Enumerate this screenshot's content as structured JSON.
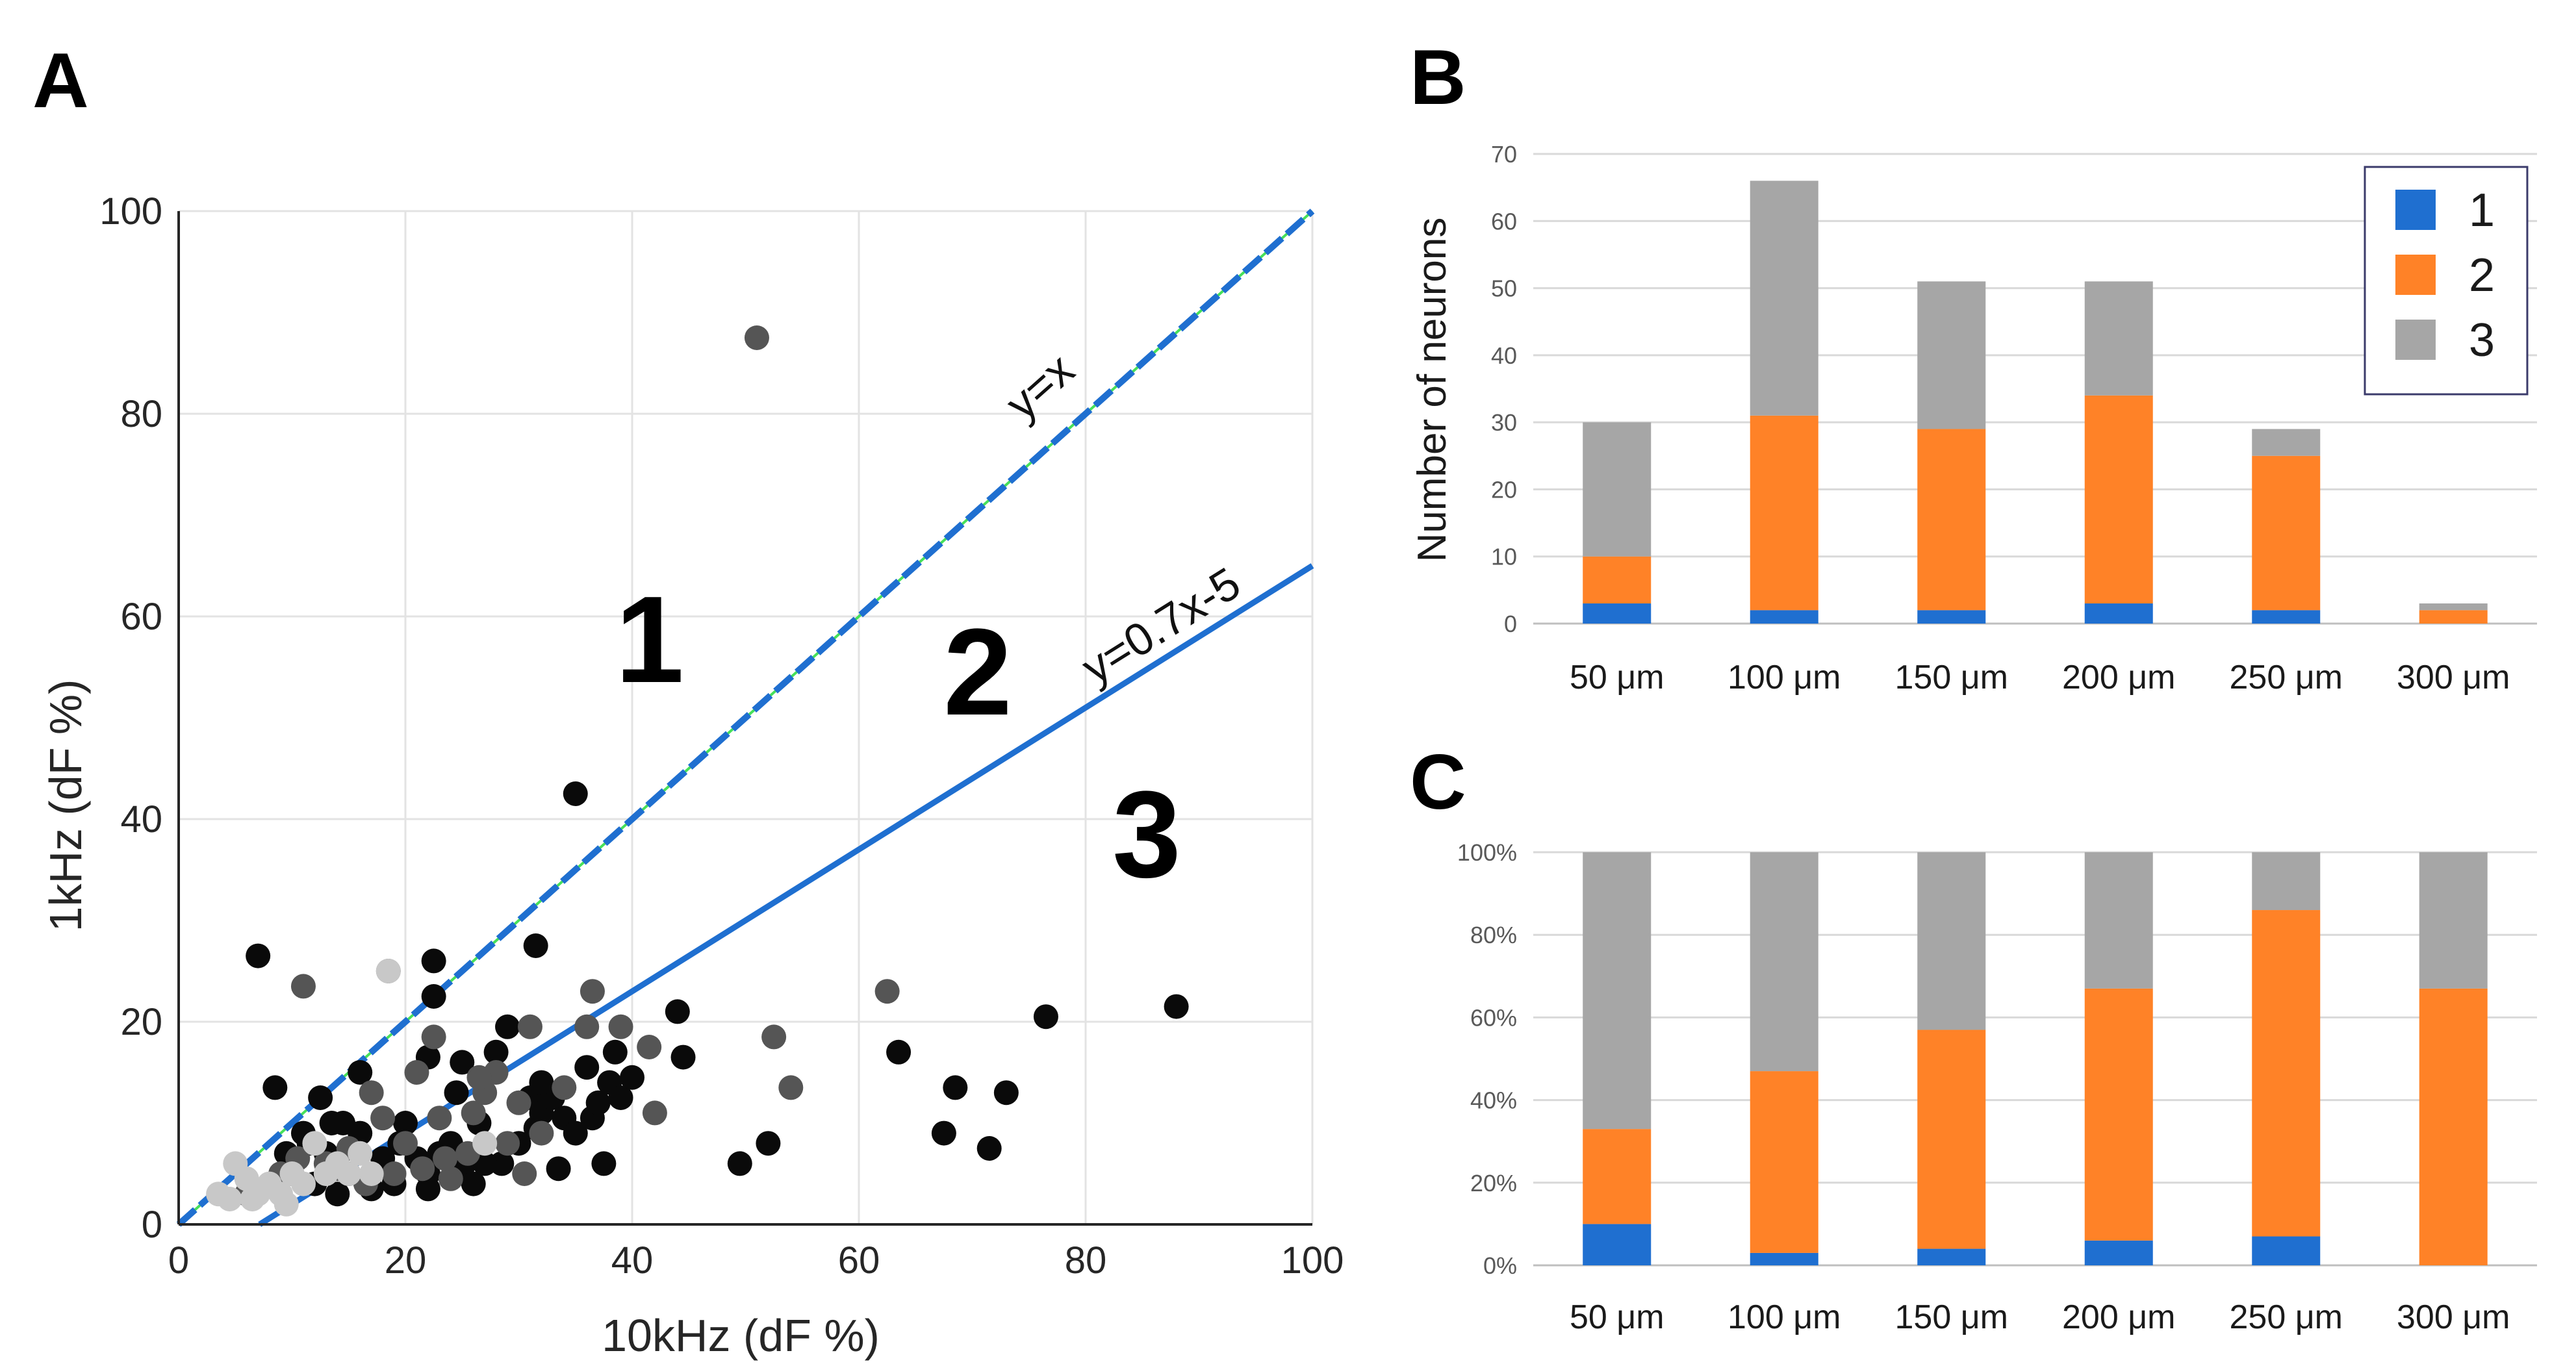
{
  "chart_data": [
    {
      "panel": "A",
      "type": "scatter",
      "xlabel": "10kHz (dF %)",
      "ylabel": "1kHz (dF %)",
      "xlim": [
        0,
        100
      ],
      "ylim": [
        0,
        100
      ],
      "x_ticks": [
        "0",
        "20",
        "40",
        "60",
        "80",
        "100"
      ],
      "y_ticks": [
        "0",
        "20",
        "40",
        "60",
        "80",
        "100"
      ],
      "grid": true,
      "lines": [
        {
          "name": "y=x",
          "slope": 1,
          "intercept": 0,
          "color": "#1f6fd0",
          "style": "dashed"
        },
        {
          "name": "y=0.7x-5",
          "slope": 0.7,
          "intercept": -5,
          "color": "#1f6fd0",
          "style": "solid"
        }
      ],
      "regions": [
        "1",
        "2",
        "3"
      ],
      "series": [
        {
          "name": "black",
          "color": "#0a0a0a",
          "points": [
            [
              7,
              26.5
            ],
            [
              22.5,
              26
            ],
            [
              22.5,
              22.5
            ],
            [
              31.5,
              27.5
            ],
            [
              35,
              42.5
            ],
            [
              8.5,
              13.5
            ],
            [
              12.5,
              12.5
            ],
            [
              13.5,
              10
            ],
            [
              16,
              15
            ],
            [
              11,
              9
            ],
            [
              9.5,
              7
            ],
            [
              13,
              7
            ],
            [
              15,
              5
            ],
            [
              16,
              9
            ],
            [
              18,
              6.5
            ],
            [
              19,
              4
            ],
            [
              20,
              10
            ],
            [
              21,
              6.5
            ],
            [
              22,
              5
            ],
            [
              23,
              7
            ],
            [
              24,
              8
            ],
            [
              25,
              5.5
            ],
            [
              26,
              4
            ],
            [
              26.5,
              10
            ],
            [
              28,
              17
            ],
            [
              28.5,
              6
            ],
            [
              30,
              8
            ],
            [
              31,
              12.5
            ],
            [
              31.5,
              9.5
            ],
            [
              32,
              11
            ],
            [
              33,
              12.5
            ],
            [
              33.5,
              5.5
            ],
            [
              34,
              10.5
            ],
            [
              35,
              9
            ],
            [
              36,
              15.5
            ],
            [
              36.5,
              10.5
            ],
            [
              37,
              12
            ],
            [
              37.5,
              6
            ],
            [
              38,
              14
            ],
            [
              38.5,
              17
            ],
            [
              39,
              12.5
            ],
            [
              40,
              14.5
            ],
            [
              44,
              21
            ],
            [
              44.5,
              16.5
            ],
            [
              49.5,
              6
            ],
            [
              52,
              8
            ],
            [
              63.5,
              17
            ],
            [
              67.5,
              9
            ],
            [
              68.5,
              13.5
            ],
            [
              71.5,
              7.5
            ],
            [
              73,
              13
            ],
            [
              76.5,
              20.5
            ],
            [
              88,
              21.5
            ],
            [
              10,
              5
            ],
            [
              12,
              4
            ],
            [
              14,
              3
            ],
            [
              17,
              3.5
            ],
            [
              19.5,
              8
            ],
            [
              22,
              16.5
            ],
            [
              27,
              6
            ],
            [
              29,
              19.5
            ],
            [
              24.5,
              13
            ],
            [
              25,
              16
            ],
            [
              14.5,
              10
            ],
            [
              11.5,
              8
            ],
            [
              22,
              3.5
            ],
            [
              32,
              14
            ]
          ]
        },
        {
          "name": "dark-gray",
          "color": "#555555",
          "points": [
            [
              51,
              87.5
            ],
            [
              11,
              23.5
            ],
            [
              18.5,
              25
            ],
            [
              62.5,
              23
            ],
            [
              52.5,
              18.5
            ],
            [
              54,
              13.5
            ],
            [
              36.5,
              23
            ],
            [
              36,
              19.5
            ],
            [
              39,
              19.5
            ],
            [
              41.5,
              17.5
            ],
            [
              42,
              11
            ],
            [
              31,
              19.5
            ],
            [
              22.5,
              18.5
            ],
            [
              21,
              15
            ],
            [
              17,
              13
            ],
            [
              18,
              10.5
            ],
            [
              20,
              8
            ],
            [
              23,
              10.5
            ],
            [
              26,
              11
            ],
            [
              27,
              13
            ],
            [
              28,
              15
            ],
            [
              30,
              12
            ],
            [
              34,
              13.5
            ],
            [
              15,
              7.5
            ],
            [
              13,
              6
            ],
            [
              24,
              4.5
            ],
            [
              29,
              8
            ],
            [
              32,
              9
            ],
            [
              25.5,
              7
            ],
            [
              19,
              5
            ],
            [
              21.5,
              5.5
            ],
            [
              16.5,
              4
            ],
            [
              9,
              5
            ],
            [
              6,
              3
            ],
            [
              10.5,
              6.5
            ],
            [
              14,
              5.5
            ],
            [
              26.5,
              14.5
            ],
            [
              30.5,
              5
            ],
            [
              23.5,
              6.5
            ]
          ]
        },
        {
          "name": "light-gray",
          "color": "#c8c8c8",
          "points": [
            [
              18.5,
              25
            ],
            [
              5,
              6
            ],
            [
              6,
              4.5
            ],
            [
              7,
              3
            ],
            [
              8,
              4
            ],
            [
              9,
              3
            ],
            [
              10,
              5
            ],
            [
              11,
              4
            ],
            [
              13,
              5
            ],
            [
              14,
              6
            ],
            [
              15,
              5
            ],
            [
              16,
              7
            ],
            [
              17,
              5
            ],
            [
              3.5,
              3
            ],
            [
              4.5,
              2.5
            ],
            [
              12,
              8
            ],
            [
              27,
              8
            ],
            [
              6.5,
              2.5
            ],
            [
              9.5,
              2
            ]
          ]
        }
      ]
    },
    {
      "panel": "B",
      "type": "bar",
      "stacked": true,
      "ylabel": "Number of neurons",
      "ylim": [
        0,
        70
      ],
      "y_ticks": [
        "0",
        "10",
        "20",
        "30",
        "40",
        "50",
        "60",
        "70"
      ],
      "categories": [
        "50 μm",
        "100 μm",
        "150 μm",
        "200 μm",
        "250 μm",
        "300 μm"
      ],
      "series": [
        {
          "name": "1",
          "color": "#1f6fd0",
          "values": [
            3,
            2,
            2,
            3,
            2,
            0
          ]
        },
        {
          "name": "2",
          "color": "#ff8227",
          "values": [
            7,
            29,
            27,
            31,
            23,
            2
          ]
        },
        {
          "name": "3",
          "color": "#a6a6a6",
          "values": [
            20,
            35,
            22,
            17,
            4,
            1
          ]
        }
      ],
      "legend": {
        "position": "top-right",
        "entries": [
          "1",
          "2",
          "3"
        ]
      },
      "grid": true
    },
    {
      "panel": "C",
      "type": "bar",
      "stacked": true,
      "percent": true,
      "ylim": [
        0,
        100
      ],
      "y_ticks": [
        "0%",
        "20%",
        "40%",
        "60%",
        "80%",
        "100%"
      ],
      "categories": [
        "50 μm",
        "100 μm",
        "150 μm",
        "200 μm",
        "250 μm",
        "300 μm"
      ],
      "series": [
        {
          "name": "1",
          "color": "#1f6fd0",
          "values": [
            10,
            3,
            4,
            6,
            7,
            0
          ]
        },
        {
          "name": "2",
          "color": "#ff8227",
          "values": [
            23,
            44,
            53,
            61,
            79,
            67
          ]
        },
        {
          "name": "3",
          "color": "#a6a6a6",
          "values": [
            67,
            53,
            43,
            33,
            14,
            33
          ]
        }
      ],
      "grid": true
    }
  ],
  "labels": {
    "panel_a": "A",
    "panel_b": "B",
    "panel_c": "C",
    "region_1": "1",
    "region_2": "2",
    "region_3": "3",
    "eq_identity": "y=x",
    "eq_fit": "y=0.7x-5"
  }
}
